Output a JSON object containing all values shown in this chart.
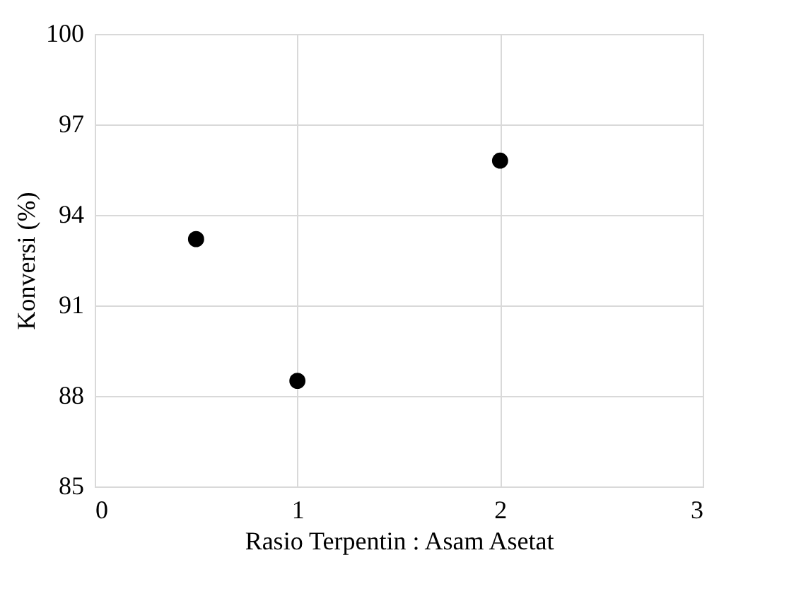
{
  "chart_data": {
    "type": "scatter",
    "xlabel": "Rasio Terpentin : Asam Asetat",
    "ylabel": "Konversi (%)",
    "x": [
      0.5,
      1,
      2
    ],
    "series": [
      {
        "color": "#000000",
        "values": [
          93.2,
          88.5,
          95.8
        ]
      }
    ],
    "xlim": [
      0,
      3
    ],
    "xticks": [
      0,
      1,
      2,
      3
    ],
    "ylim": [
      85,
      100
    ],
    "yticks": [
      85,
      88,
      91,
      94,
      97,
      100
    ],
    "grid": true,
    "marker": "circle"
  }
}
